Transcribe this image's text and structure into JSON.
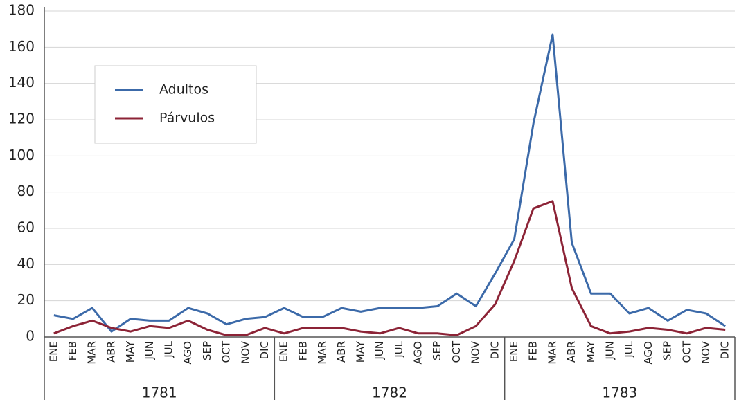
{
  "chart_data": {
    "type": "line",
    "categories": [
      "ENE",
      "FEB",
      "MAR",
      "ABR",
      "MAY",
      "JUN",
      "JUL",
      "AGO",
      "SEP",
      "OCT",
      "NOV",
      "DIC",
      "ENE",
      "FEB",
      "MAR",
      "ABR",
      "MAY",
      "JUN",
      "JUL",
      "AGO",
      "SEP",
      "OCT",
      "NOV",
      "DIC",
      "ENE",
      "FEB",
      "MAR",
      "ABR",
      "MAY",
      "JUN",
      "JUL",
      "AGO",
      "SEP",
      "OCT",
      "NOV",
      "DIC"
    ],
    "groups": [
      "1781",
      "1782",
      "1783"
    ],
    "series": [
      {
        "name": "Adultos",
        "color": "#3c6aa9",
        "values": [
          12,
          10,
          16,
          3,
          10,
          9,
          9,
          16,
          13,
          7,
          10,
          11,
          16,
          11,
          11,
          16,
          14,
          16,
          16,
          16,
          17,
          24,
          17,
          35,
          54,
          118,
          167,
          52,
          24,
          24,
          13,
          16,
          9,
          15,
          13,
          6
        ]
      },
      {
        "name": "Párvulos",
        "color": "#8c2336",
        "values": [
          2,
          6,
          9,
          5,
          3,
          6,
          5,
          9,
          4,
          1,
          1,
          5,
          2,
          5,
          5,
          5,
          3,
          2,
          5,
          2,
          2,
          1,
          6,
          18,
          42,
          71,
          75,
          27,
          6,
          2,
          3,
          5,
          4,
          2,
          5,
          4
        ]
      }
    ],
    "ylim": [
      0,
      180
    ],
    "yticks": [
      0,
      20,
      40,
      60,
      80,
      100,
      120,
      140,
      160,
      180
    ],
    "grid": true
  }
}
